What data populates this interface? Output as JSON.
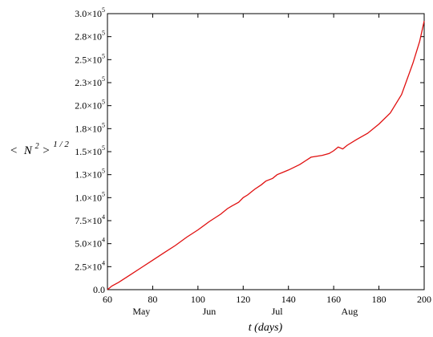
{
  "chart_data": {
    "type": "line",
    "xlabel": "t (days)",
    "ylabel": {
      "open": "<",
      "var": "N",
      "sup": "2",
      "close": ">",
      "exp": "1 / 2"
    },
    "xlim": [
      60,
      200
    ],
    "ylim": [
      0,
      300000
    ],
    "grid": false,
    "line_color": "#e01010",
    "x_ticks": [
      {
        "value": 60,
        "label": "60"
      },
      {
        "value": 80,
        "label": "80"
      },
      {
        "value": 100,
        "label": "100"
      },
      {
        "value": 120,
        "label": "120"
      },
      {
        "value": 140,
        "label": "140"
      },
      {
        "value": 160,
        "label": "160"
      },
      {
        "value": 180,
        "label": "180"
      },
      {
        "value": 200,
        "label": "200"
      }
    ],
    "month_labels": [
      {
        "x": 75,
        "label": "May"
      },
      {
        "x": 105,
        "label": "Jun"
      },
      {
        "x": 135,
        "label": "Jul"
      },
      {
        "x": 167,
        "label": "Aug"
      }
    ],
    "y_ticks": [
      {
        "value": 0,
        "mant": "0.0",
        "exp": ""
      },
      {
        "value": 25000,
        "mant": "2.5×10",
        "exp": "4"
      },
      {
        "value": 50000,
        "mant": "5.0×10",
        "exp": "4"
      },
      {
        "value": 75000,
        "mant": "7.5×10",
        "exp": "4"
      },
      {
        "value": 100000,
        "mant": "1.0×10",
        "exp": "5"
      },
      {
        "value": 125000,
        "mant": "1.3×10",
        "exp": "5"
      },
      {
        "value": 150000,
        "mant": "1.5×10",
        "exp": "5"
      },
      {
        "value": 175000,
        "mant": "1.8×10",
        "exp": "5"
      },
      {
        "value": 200000,
        "mant": "2.0×10",
        "exp": "5"
      },
      {
        "value": 225000,
        "mant": "2.3×10",
        "exp": "5"
      },
      {
        "value": 250000,
        "mant": "2.5×10",
        "exp": "5"
      },
      {
        "value": 275000,
        "mant": "2.8×10",
        "exp": "5"
      },
      {
        "value": 300000,
        "mant": "3.0×10",
        "exp": "5"
      }
    ],
    "x": [
      60,
      62,
      65,
      70,
      75,
      80,
      85,
      90,
      95,
      100,
      105,
      110,
      113,
      115,
      118,
      120,
      122,
      125,
      128,
      130,
      133,
      135,
      137,
      140,
      145,
      150,
      155,
      158,
      160,
      162,
      164,
      166,
      170,
      175,
      180,
      185,
      190,
      195,
      198,
      200
    ],
    "values": [
      0,
      4000,
      8000,
      16000,
      24000,
      32000,
      40000,
      48000,
      57000,
      65000,
      74000,
      82000,
      88000,
      91000,
      95000,
      100000,
      103000,
      109000,
      114000,
      118000,
      121000,
      125000,
      127000,
      130000,
      136000,
      144000,
      146000,
      148000,
      151000,
      155000,
      153000,
      157000,
      163000,
      170000,
      180000,
      192000,
      212000,
      246000,
      270000,
      292000
    ]
  }
}
